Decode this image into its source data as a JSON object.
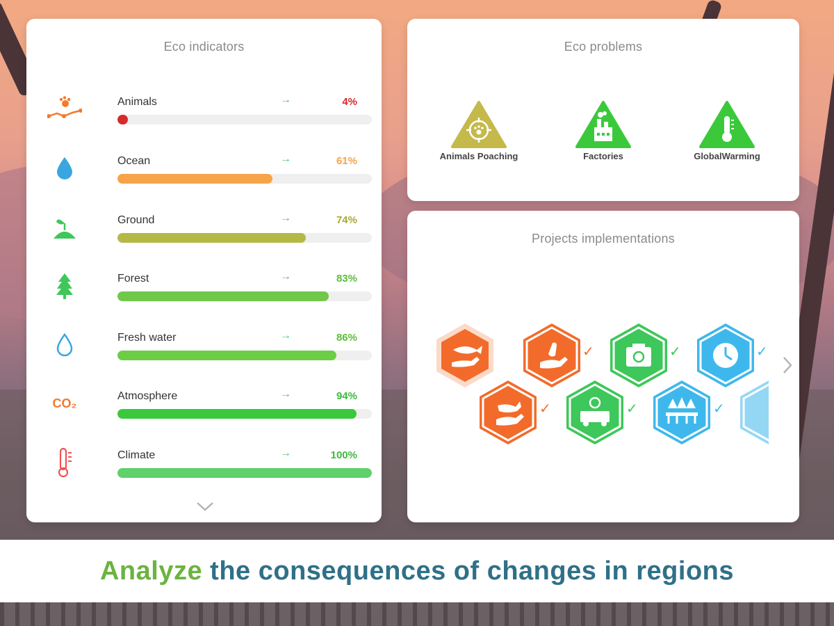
{
  "indicators": {
    "title": "Eco indicators",
    "items": [
      {
        "label": "Animals",
        "value": "4%",
        "fraction": 0.04,
        "color": "#d62b2b",
        "icon": "paw-trail-icon"
      },
      {
        "label": "Ocean",
        "value": "61%",
        "fraction": 0.61,
        "color": "#f6a34a",
        "icon": "water-drop-icon"
      },
      {
        "label": "Ground",
        "value": "74%",
        "fraction": 0.74,
        "color": "#b6b846",
        "icon": "sprout-icon"
      },
      {
        "label": "Forest",
        "value": "83%",
        "fraction": 0.83,
        "color": "#70c84a",
        "icon": "pine-tree-icon"
      },
      {
        "label": "Fresh water",
        "value": "86%",
        "fraction": 0.86,
        "color": "#6ccd46",
        "icon": "fresh-water-drop-icon"
      },
      {
        "label": "Atmosphere",
        "value": "94%",
        "fraction": 0.94,
        "color": "#3cc83c",
        "icon": "co2-icon"
      },
      {
        "label": "Climate",
        "value": "100%",
        "fraction": 1.0,
        "color": "#5fd06a",
        "icon": "thermometer-icon"
      }
    ],
    "arrow_glyph": "→",
    "co2_text": "CO₂"
  },
  "problems": {
    "title": "Eco problems",
    "items": [
      {
        "label": "Animals Poaching",
        "color": "#c4b94a",
        "icon": "poaching-target-icon"
      },
      {
        "label": "Factories",
        "color": "#3bc93b",
        "icon": "factory-icon"
      },
      {
        "label": "GlobalWarming",
        "color": "#3bc93b",
        "icon": "thermometer-icon"
      }
    ]
  },
  "projects": {
    "title": "Projects implementations",
    "items": [
      {
        "icon": "fish-hand-icon",
        "color": "#f26b2b",
        "completed": false
      },
      {
        "icon": "bird-hand-icon",
        "color": "#f26b2b",
        "completed": true
      },
      {
        "icon": "recycle-box-icon",
        "color": "#3ec75a",
        "completed": true
      },
      {
        "icon": "clock-globe-icon",
        "color": "#3eb8ec",
        "completed": true
      },
      {
        "icon": "stag-hand-icon",
        "color": "#f26b2b",
        "completed": true
      },
      {
        "icon": "recycle-truck-icon",
        "color": "#3ec75a",
        "completed": true
      },
      {
        "icon": "forest-bridge-icon",
        "color": "#3eb8ec",
        "completed": true
      },
      {
        "icon": "partial-project-icon",
        "color": "#3eb8ec",
        "completed": false
      }
    ],
    "check_glyph": "✓"
  },
  "banner": {
    "accent": "Analyze",
    "rest": " the consequences of changes in regions",
    "accent_color": "#6cb33f",
    "text_color": "#2f7087"
  }
}
